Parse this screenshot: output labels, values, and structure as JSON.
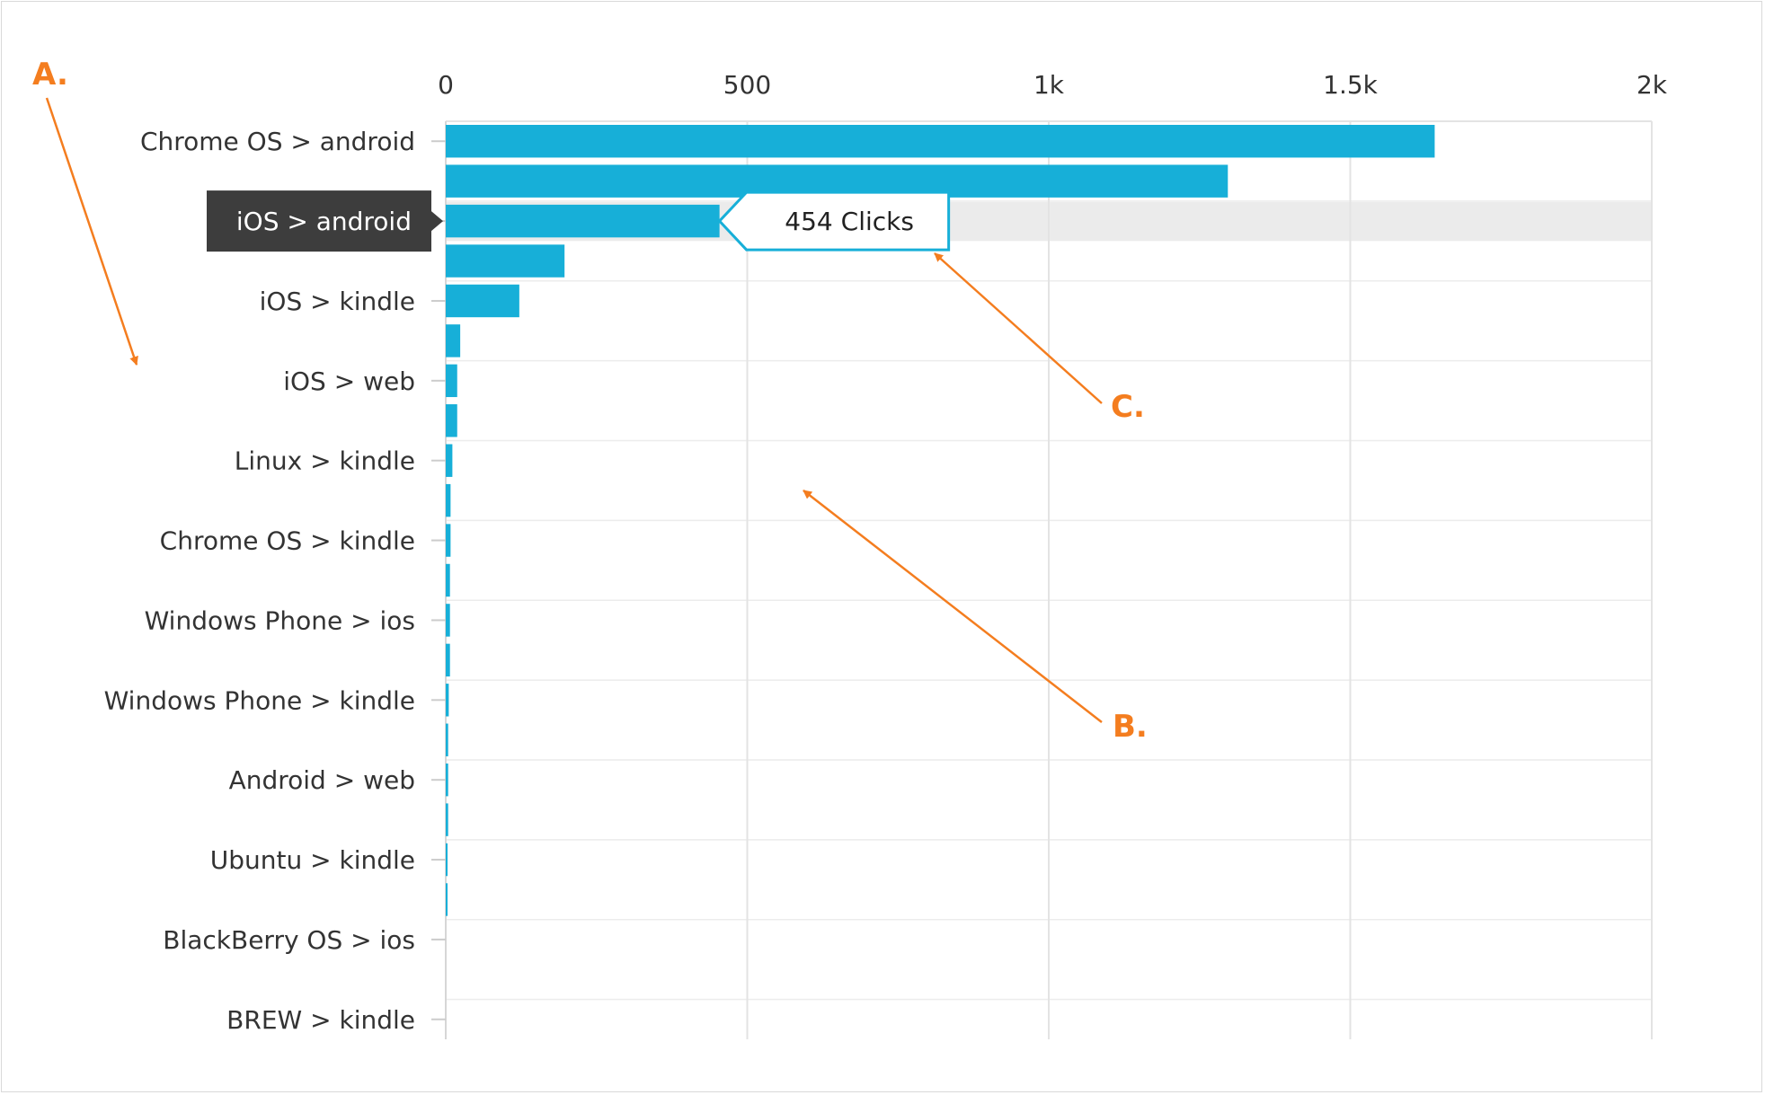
{
  "chart_data": {
    "type": "bar",
    "orientation": "horizontal",
    "title": "",
    "xlabel": "",
    "ylabel": "",
    "xlim": [
      0,
      2000
    ],
    "x_ticks": [
      {
        "value": 0,
        "label": "0"
      },
      {
        "value": 500,
        "label": "500"
      },
      {
        "value": 1000,
        "label": "1k"
      },
      {
        "value": 1500,
        "label": "1.5k"
      },
      {
        "value": 2000,
        "label": "2k"
      }
    ],
    "grid": true,
    "bar_color": "#17afd8",
    "rows": [
      {
        "value": 1640,
        "label": "Chrome OS > android"
      },
      {
        "value": 1297,
        "label": ""
      },
      {
        "value": 454,
        "label": "iOS > android"
      },
      {
        "value": 197,
        "label": ""
      },
      {
        "value": 122,
        "label": "iOS > kindle"
      },
      {
        "value": 24,
        "label": ""
      },
      {
        "value": 19,
        "label": "iOS > web"
      },
      {
        "value": 19,
        "label": ""
      },
      {
        "value": 11,
        "label": "Linux > kindle"
      },
      {
        "value": 8,
        "label": ""
      },
      {
        "value": 8,
        "label": "Chrome OS > kindle"
      },
      {
        "value": 7,
        "label": ""
      },
      {
        "value": 7,
        "label": "Windows Phone > ios"
      },
      {
        "value": 7,
        "label": ""
      },
      {
        "value": 5,
        "label": "Windows Phone > kindle"
      },
      {
        "value": 4,
        "label": ""
      },
      {
        "value": 4,
        "label": "Android > web"
      },
      {
        "value": 4,
        "label": ""
      },
      {
        "value": 3,
        "label": "Ubuntu > kindle"
      },
      {
        "value": 3,
        "label": ""
      },
      {
        "value": 0,
        "label": "BlackBerry OS > ios"
      },
      {
        "value": 0,
        "label": ""
      },
      {
        "value": 0,
        "label": "BREW > kindle"
      }
    ],
    "highlighted_row": 2,
    "tooltip": {
      "text": "454 Clicks"
    },
    "annotations": [
      {
        "id": "a",
        "text": "A."
      },
      {
        "id": "b",
        "text": "B."
      },
      {
        "id": "c",
        "text": "C."
      }
    ],
    "annotation_color": "#f47d1f",
    "highlight_label_bg": "#3d3d3d",
    "highlight_band_color": "#ebebeb"
  }
}
